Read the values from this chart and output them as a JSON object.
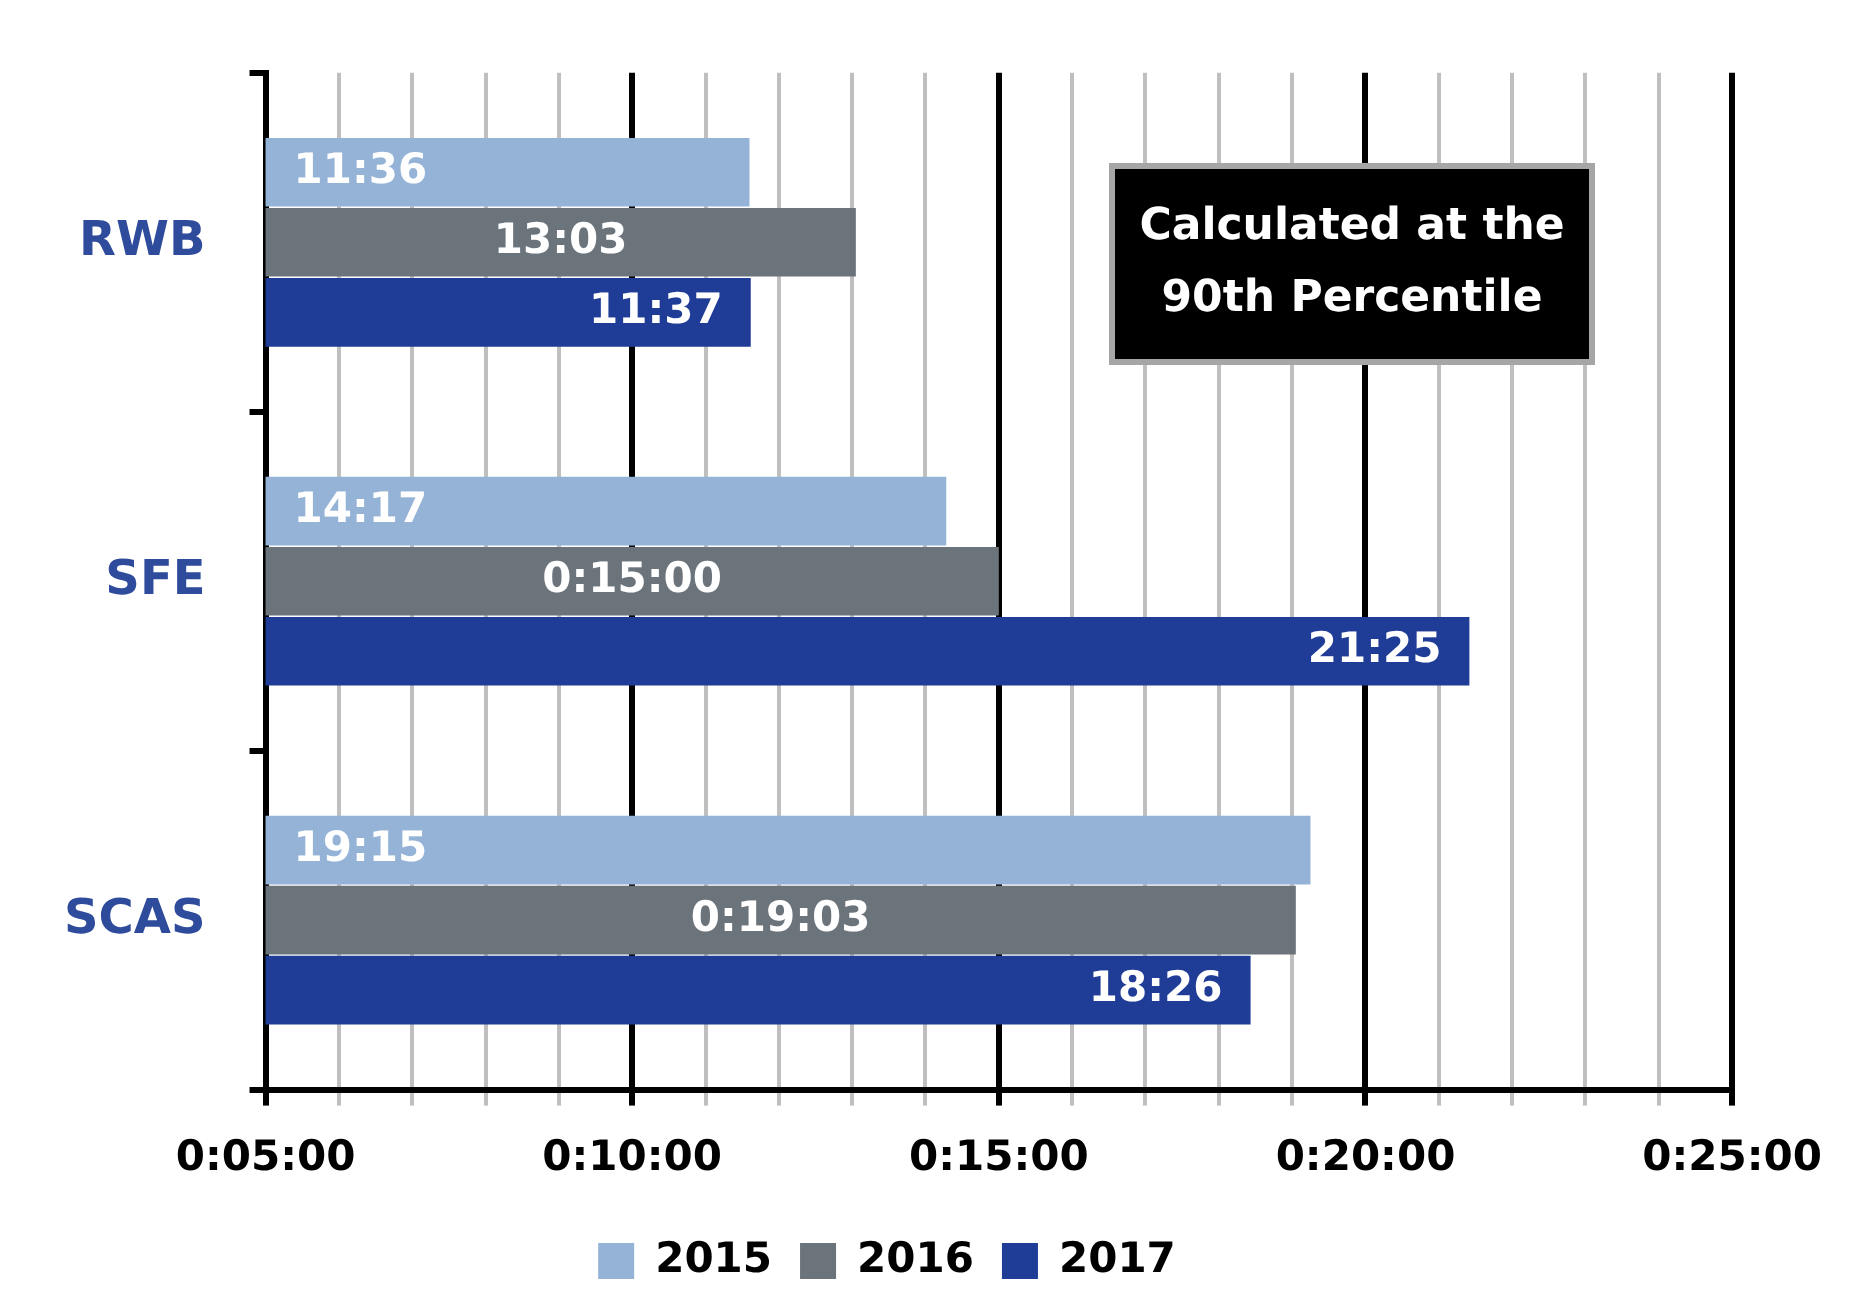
{
  "chart_data": {
    "type": "bar",
    "orientation": "horizontal",
    "categories": [
      "RWB",
      "SFE",
      "SCAS"
    ],
    "series": [
      {
        "name": "2015",
        "color": "#95b3d7",
        "values": [
          11.6,
          14.283,
          19.25
        ],
        "value_labels": [
          "11:36",
          "14:17",
          "19:15"
        ]
      },
      {
        "name": "2016",
        "color": "#6b737b",
        "values": [
          13.05,
          15,
          19.05
        ],
        "value_labels": [
          "13:03",
          "0:15:00",
          "0:19:03"
        ]
      },
      {
        "name": "2017",
        "color": "#1f3d96",
        "values": [
          11.617,
          21.417,
          18.433
        ],
        "value_labels": [
          "11:37",
          "21:25",
          "18:26"
        ]
      }
    ],
    "xlim": [
      5,
      25
    ],
    "xticks": [
      {
        "value": 5,
        "label": "0:05:00"
      },
      {
        "value": 6,
        "label": null
      },
      {
        "value": 7,
        "label": null
      },
      {
        "value": 8,
        "label": null
      },
      {
        "value": 9,
        "label": null
      },
      {
        "value": 10,
        "label": "0:10:00"
      },
      {
        "value": 11,
        "label": null
      },
      {
        "value": 12,
        "label": null
      },
      {
        "value": 13,
        "label": null
      },
      {
        "value": 14,
        "label": null
      },
      {
        "value": 15,
        "label": "0:15:00"
      },
      {
        "value": 16,
        "label": null
      },
      {
        "value": 17,
        "label": null
      },
      {
        "value": 18,
        "label": null
      },
      {
        "value": 19,
        "label": null
      },
      {
        "value": 20,
        "label": "0:20:00"
      },
      {
        "value": 21,
        "label": null
      },
      {
        "value": 22,
        "label": null
      },
      {
        "value": 23,
        "label": null
      },
      {
        "value": 24,
        "label": null
      },
      {
        "value": 25,
        "label": "0:25:00"
      }
    ],
    "grid": "x",
    "legend": "bottom",
    "annotations": [
      "Calculated at the 90th Percentile"
    ]
  }
}
